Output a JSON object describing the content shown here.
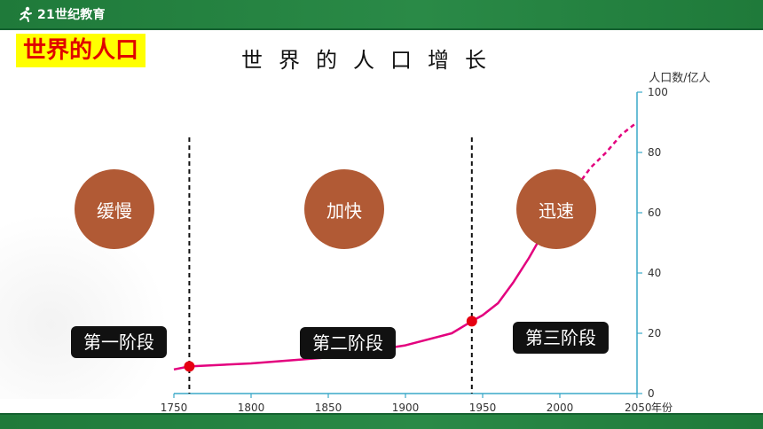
{
  "header": {
    "logo_text": "21世纪教育",
    "logo_icon": "runner-icon",
    "brand_color": "#1f7a3a"
  },
  "topic_label": "世界的人口",
  "chart_data": {
    "type": "line",
    "title": "世界的人口增长",
    "ylabel": "人口数/亿人",
    "xlabel": "年份",
    "x_ticks": [
      1750,
      1800,
      1850,
      1900,
      1950,
      2000,
      2050
    ],
    "y_ticks": [
      0,
      20,
      40,
      60,
      80,
      100
    ],
    "xlim": [
      1750,
      2050
    ],
    "ylim": [
      0,
      100
    ],
    "series": [
      {
        "style": "solid",
        "color": "#e3007e",
        "x": [
          1750,
          1760,
          1800,
          1850,
          1900,
          1930,
          1943,
          1950,
          1960,
          1970,
          1980,
          1990,
          2000
        ],
        "y": [
          8,
          9,
          10,
          12,
          16,
          20,
          24,
          26,
          30,
          37,
          45,
          54,
          60
        ]
      },
      {
        "style": "dashed",
        "color": "#e3007e",
        "x": [
          2000,
          2010,
          2020,
          2030,
          2040,
          2050
        ],
        "y": [
          60,
          68,
          75,
          80,
          86,
          90
        ]
      }
    ],
    "markers": [
      {
        "x": 1760,
        "y": 9
      },
      {
        "x": 1943,
        "y": 24
      }
    ],
    "dividers": [
      1760,
      1943
    ]
  },
  "bubbles": [
    "缓慢",
    "加快",
    "迅速"
  ],
  "stages": [
    "第一阶段",
    "第二阶段",
    "第三阶段"
  ]
}
